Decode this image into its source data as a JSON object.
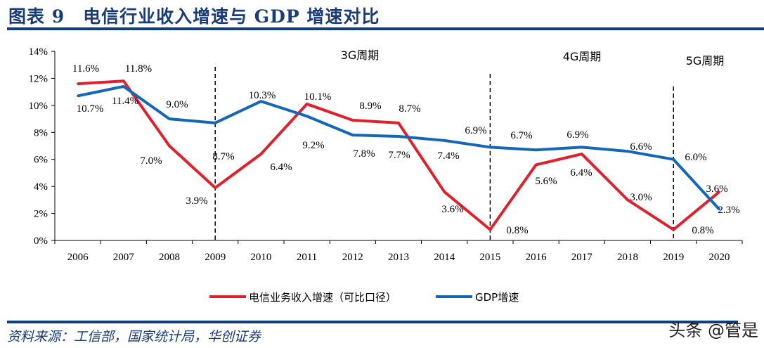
{
  "header": {
    "title": "图表 9　电信行业收入增速与 GDP 增速对比"
  },
  "footer": {
    "source": "资料来源：工信部，国家统计局，华创证券",
    "watermark": "头条 @管是"
  },
  "chart_data": {
    "type": "line",
    "categories": [
      "2006",
      "2007",
      "2008",
      "2009",
      "2010",
      "2011",
      "2012",
      "2013",
      "2014",
      "2015",
      "2016",
      "2017",
      "2018",
      "2019",
      "2020"
    ],
    "ylim": [
      0,
      14
    ],
    "yticks": [
      "0%",
      "2%",
      "4%",
      "6%",
      "8%",
      "10%",
      "12%",
      "14%"
    ],
    "grid": false,
    "legend_position": "bottom",
    "series": [
      {
        "name": "电信业务收入增速（可比口径）",
        "color": "#e0202a",
        "values": [
          11.6,
          11.8,
          7.0,
          3.9,
          6.4,
          10.1,
          8.9,
          8.7,
          3.6,
          0.8,
          5.6,
          6.4,
          3.0,
          0.8,
          3.6
        ],
        "labels": [
          "11.6%",
          "11.8%",
          "7.0%",
          "3.9%",
          "6.4%",
          "10.1%",
          "8.9%",
          "8.7%",
          "3.6%",
          "0.8%",
          "5.6%",
          "6.4%",
          "3.0%",
          "0.8%",
          "3.6%"
        ]
      },
      {
        "name": "GDP增速",
        "color": "#1466b8",
        "values": [
          10.7,
          11.4,
          9.0,
          8.7,
          10.3,
          9.2,
          7.8,
          7.7,
          7.4,
          6.9,
          6.7,
          6.9,
          6.6,
          6.0,
          2.3
        ],
        "labels": [
          "10.7%",
          "11.4%",
          "9.0%",
          "8.7%",
          "10.3%",
          "9.2%",
          "7.8%",
          "7.7%",
          "7.4%",
          "6.9%",
          "6.7%",
          "6.9%",
          "6.6%",
          "6.0%",
          "2.3%"
        ]
      }
    ],
    "annotations": [
      {
        "text": "3G周期",
        "at": "2009"
      },
      {
        "text": "4G周期",
        "at": "2015"
      },
      {
        "text": "5G周期",
        "at": "2019"
      }
    ],
    "dividers": [
      "2009",
      "2015",
      "2019"
    ]
  }
}
